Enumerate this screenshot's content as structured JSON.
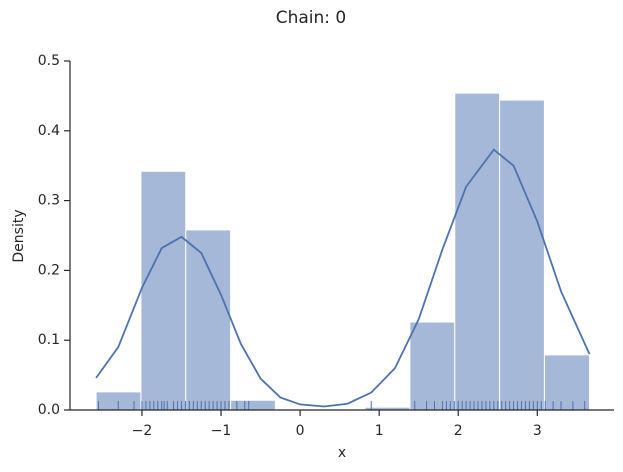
{
  "chart_data": {
    "type": "histogram",
    "title": "Chain: 0",
    "xlabel": "x",
    "ylabel": "Density",
    "bins": [
      -2.58,
      -2.013,
      -1.446,
      -0.879,
      -0.312,
      0.255,
      0.822,
      1.389,
      1.956,
      2.523,
      3.09,
      3.66
    ],
    "values": [
      0.026,
      0.342,
      0.258,
      0.014,
      0,
      0,
      0.004,
      0.126,
      0.454,
      0.444,
      0.079
    ],
    "color": "#a5b8d8",
    "edgecolor": "#ffffff",
    "kde": {
      "color": "#4c72b0",
      "x": [
        -2.58,
        -2.3,
        -2.0,
        -1.75,
        -1.5,
        -1.25,
        -1.0,
        -0.75,
        -0.5,
        -0.25,
        0,
        0.3,
        0.6,
        0.9,
        1.2,
        1.5,
        1.8,
        2.1,
        2.45,
        2.7,
        3.0,
        3.3,
        3.66
      ],
      "values": [
        0.046,
        0.09,
        0.175,
        0.232,
        0.248,
        0.225,
        0.165,
        0.095,
        0.045,
        0.018,
        0.008,
        0.005,
        0.009,
        0.025,
        0.06,
        0.13,
        0.23,
        0.32,
        0.373,
        0.35,
        0.27,
        0.17,
        0.08
      ]
    },
    "rug": {
      "color": "#4c72b0",
      "values": [
        -2.55,
        -2.3,
        -2.1,
        -2.0,
        -1.95,
        -1.9,
        -1.85,
        -1.8,
        -1.75,
        -1.72,
        -1.68,
        -1.6,
        -1.55,
        -1.5,
        -1.45,
        -1.4,
        -1.35,
        -1.3,
        -1.25,
        -1.2,
        -1.15,
        -1.1,
        -1.05,
        -1.0,
        -0.95,
        -0.9,
        -0.8,
        -0.7,
        -0.65,
        0.9,
        1.45,
        1.6,
        1.7,
        1.8,
        1.85,
        1.9,
        1.95,
        2.0,
        2.05,
        2.1,
        2.15,
        2.2,
        2.25,
        2.3,
        2.35,
        2.4,
        2.45,
        2.5,
        2.55,
        2.6,
        2.65,
        2.7,
        2.75,
        2.8,
        2.85,
        2.9,
        2.95,
        3.0,
        3.05,
        3.1,
        3.2,
        3.3,
        3.45,
        3.6
      ]
    },
    "xlim": [
      -2.91,
      3.97
    ],
    "ylim": [
      0,
      0.5
    ],
    "xticks": [
      {
        "value": -2,
        "label": "−2"
      },
      {
        "value": -1,
        "label": "−1"
      },
      0,
      1,
      2,
      3
    ],
    "yticks": [
      {
        "value": 0,
        "label": "0.0"
      },
      0.1,
      0.2,
      0.3,
      0.4,
      0.5
    ]
  }
}
